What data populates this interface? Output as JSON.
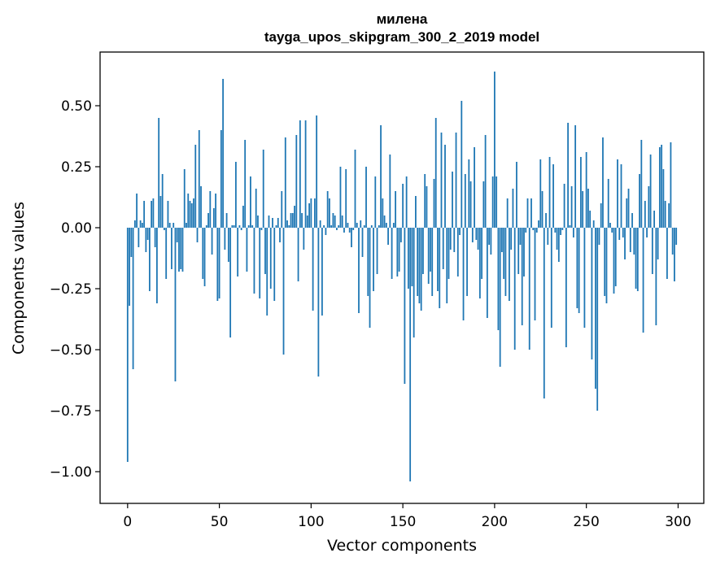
{
  "chart_data": {
    "type": "bar",
    "title_lines": [
      "милена",
      "tayga_upos_skipgram_300_2_2019 model"
    ],
    "xlabel": "Vector components",
    "ylabel": "Components values",
    "xlim": [
      -15,
      314
    ],
    "ylim": [
      -1.13,
      0.72
    ],
    "x_ticks": [
      0,
      50,
      100,
      150,
      200,
      250,
      300
    ],
    "y_ticks": [
      0.5,
      0.25,
      0.0,
      -0.25,
      -0.5,
      -0.75,
      -1.0
    ],
    "y_tick_labels": [
      "0.50",
      "0.25",
      "0.00",
      "−0.25",
      "−0.50",
      "−0.75",
      "−1.00"
    ],
    "grid": false,
    "bar_color": "#1f77b4",
    "values": [
      -0.96,
      -0.32,
      -0.12,
      -0.58,
      0.03,
      0.14,
      -0.08,
      0.03,
      0.02,
      0.11,
      -0.1,
      -0.05,
      -0.26,
      0.11,
      0.12,
      -0.08,
      -0.31,
      0.45,
      0.13,
      0.22,
      -0.01,
      -0.21,
      0.11,
      0.02,
      -0.17,
      0.02,
      -0.63,
      -0.06,
      -0.18,
      -0.17,
      -0.18,
      0.24,
      0.02,
      0.14,
      0.11,
      0.1,
      0.12,
      0.34,
      -0.06,
      0.4,
      0.17,
      -0.21,
      -0.24,
      0.01,
      0.06,
      0.15,
      -0.11,
      0.08,
      0.14,
      -0.3,
      -0.29,
      0.4,
      0.61,
      -0.09,
      0.06,
      -0.14,
      -0.45,
      0.01,
      0.01,
      0.27,
      -0.2,
      0.01,
      -0.01,
      0.09,
      0.36,
      -0.18,
      0.01,
      0.21,
      0.01,
      -0.27,
      0.16,
      0.05,
      -0.29,
      -0.01,
      0.32,
      -0.19,
      -0.36,
      0.05,
      -0.25,
      0.04,
      -0.3,
      0.01,
      0.04,
      -0.06,
      0.15,
      -0.52,
      0.37,
      0.03,
      0.01,
      0.06,
      0.06,
      0.09,
      0.38,
      -0.22,
      0.44,
      0.06,
      -0.09,
      0.44,
      0.05,
      0.1,
      0.12,
      -0.34,
      0.12,
      0.46,
      -0.61,
      0.03,
      -0.36,
      0.01,
      -0.03,
      0.15,
      0.12,
      0.01,
      0.06,
      0.05,
      -0.01,
      0.01,
      0.25,
      0.05,
      -0.02,
      0.24,
      0.02,
      -0.02,
      -0.08,
      -0.01,
      0.32,
      0.02,
      -0.35,
      0.03,
      -0.12,
      0.01,
      0.25,
      -0.28,
      -0.41,
      0.01,
      -0.26,
      0.21,
      -0.19,
      0.01,
      0.42,
      0.12,
      0.05,
      0.02,
      -0.07,
      0.3,
      -0.21,
      0.02,
      0.15,
      -0.2,
      -0.18,
      -0.06,
      0.18,
      -0.64,
      0.21,
      -0.25,
      -1.04,
      -0.24,
      -0.45,
      0.13,
      -0.28,
      -0.31,
      -0.34,
      -0.19,
      0.22,
      0.17,
      -0.23,
      -0.18,
      -0.28,
      0.2,
      0.45,
      -0.26,
      -0.33,
      0.39,
      -0.17,
      0.34,
      -0.31,
      -0.21,
      -0.09,
      0.23,
      -0.1,
      0.39,
      -0.2,
      -0.03,
      0.52,
      -0.38,
      0.22,
      -0.28,
      0.28,
      0.19,
      -0.06,
      0.33,
      -0.05,
      -0.09,
      -0.29,
      -0.21,
      0.19,
      0.38,
      -0.37,
      -0.07,
      -0.11,
      0.21,
      0.64,
      0.21,
      -0.42,
      -0.57,
      -0.1,
      -0.21,
      -0.28,
      0.12,
      -0.3,
      -0.09,
      0.16,
      -0.5,
      0.27,
      -0.19,
      -0.07,
      -0.4,
      -0.2,
      -0.02,
      0.12,
      -0.5,
      0.12,
      -0.01,
      -0.38,
      -0.02,
      0.03,
      0.28,
      0.15,
      -0.7,
      0.06,
      -0.07,
      0.29,
      -0.41,
      0.26,
      -0.02,
      -0.09,
      -0.14,
      -0.03,
      -0.01,
      0.18,
      -0.49,
      0.43,
      0.01,
      0.17,
      -0.04,
      0.42,
      -0.33,
      -0.35,
      0.29,
      0.15,
      -0.41,
      0.31,
      0.16,
      0.07,
      -0.54,
      0.03,
      -0.66,
      -0.75,
      -0.07,
      0.1,
      0.37,
      -0.28,
      -0.31,
      0.2,
      0.02,
      -0.02,
      -0.27,
      -0.24,
      0.28,
      -0.05,
      0.26,
      -0.04,
      -0.13,
      0.12,
      0.16,
      -0.1,
      0.06,
      -0.11,
      -0.25,
      -0.26,
      0.22,
      0.36,
      -0.43,
      0.11,
      -0.04,
      0.17,
      0.3,
      -0.19,
      0.07,
      -0.4,
      -0.13,
      0.33,
      0.34,
      0.24,
      0.11,
      -0.21,
      0.1,
      0.35,
      -0.11,
      -0.22,
      -0.07
    ]
  }
}
